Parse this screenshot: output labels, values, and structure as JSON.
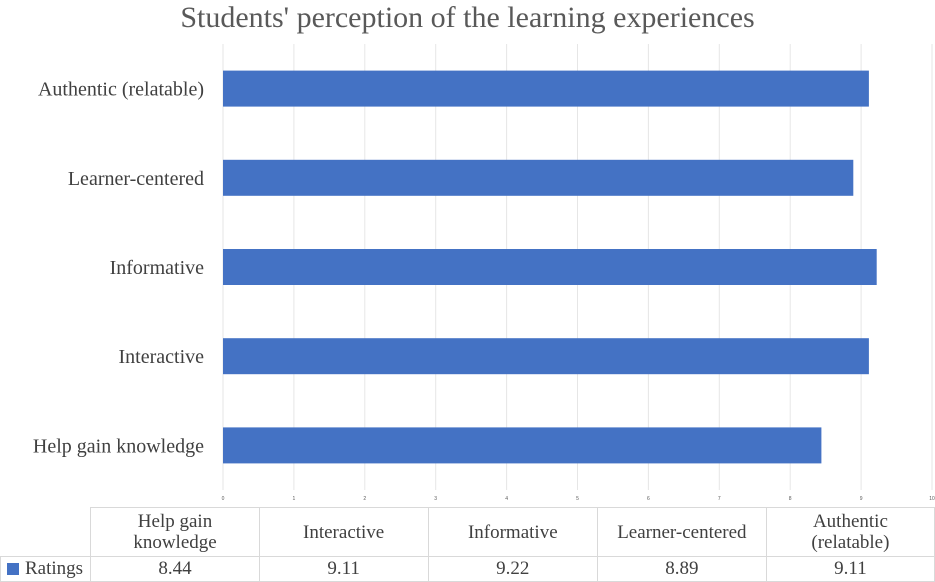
{
  "chart_data": {
    "type": "bar",
    "orientation": "horizontal",
    "title": "Students' perception of the learning experiences",
    "categories": [
      "Help gain knowledge",
      "Interactive",
      "Informative",
      "Learner-centered",
      "Authentic (relatable)"
    ],
    "series": [
      {
        "name": "Ratings",
        "values": [
          8.44,
          9.11,
          9.22,
          8.89,
          9.11
        ],
        "color": "#4472c4"
      }
    ],
    "xlim": [
      0,
      10
    ],
    "x_ticks": [
      "0",
      "1",
      "2",
      "3",
      "4",
      "5",
      "6",
      "7",
      "8",
      "9",
      "10"
    ],
    "grid": true,
    "legend": "data-table"
  },
  "data_table": {
    "header_lines": [
      [
        "Help gain",
        "knowledge"
      ],
      [
        "Interactive"
      ],
      [
        "Informative"
      ],
      [
        "Learner-centered"
      ],
      [
        "Authentic",
        "(relatable)"
      ]
    ],
    "row_label": "Ratings",
    "values": [
      "8.44",
      "9.11",
      "9.22",
      "8.89",
      "9.11"
    ]
  }
}
